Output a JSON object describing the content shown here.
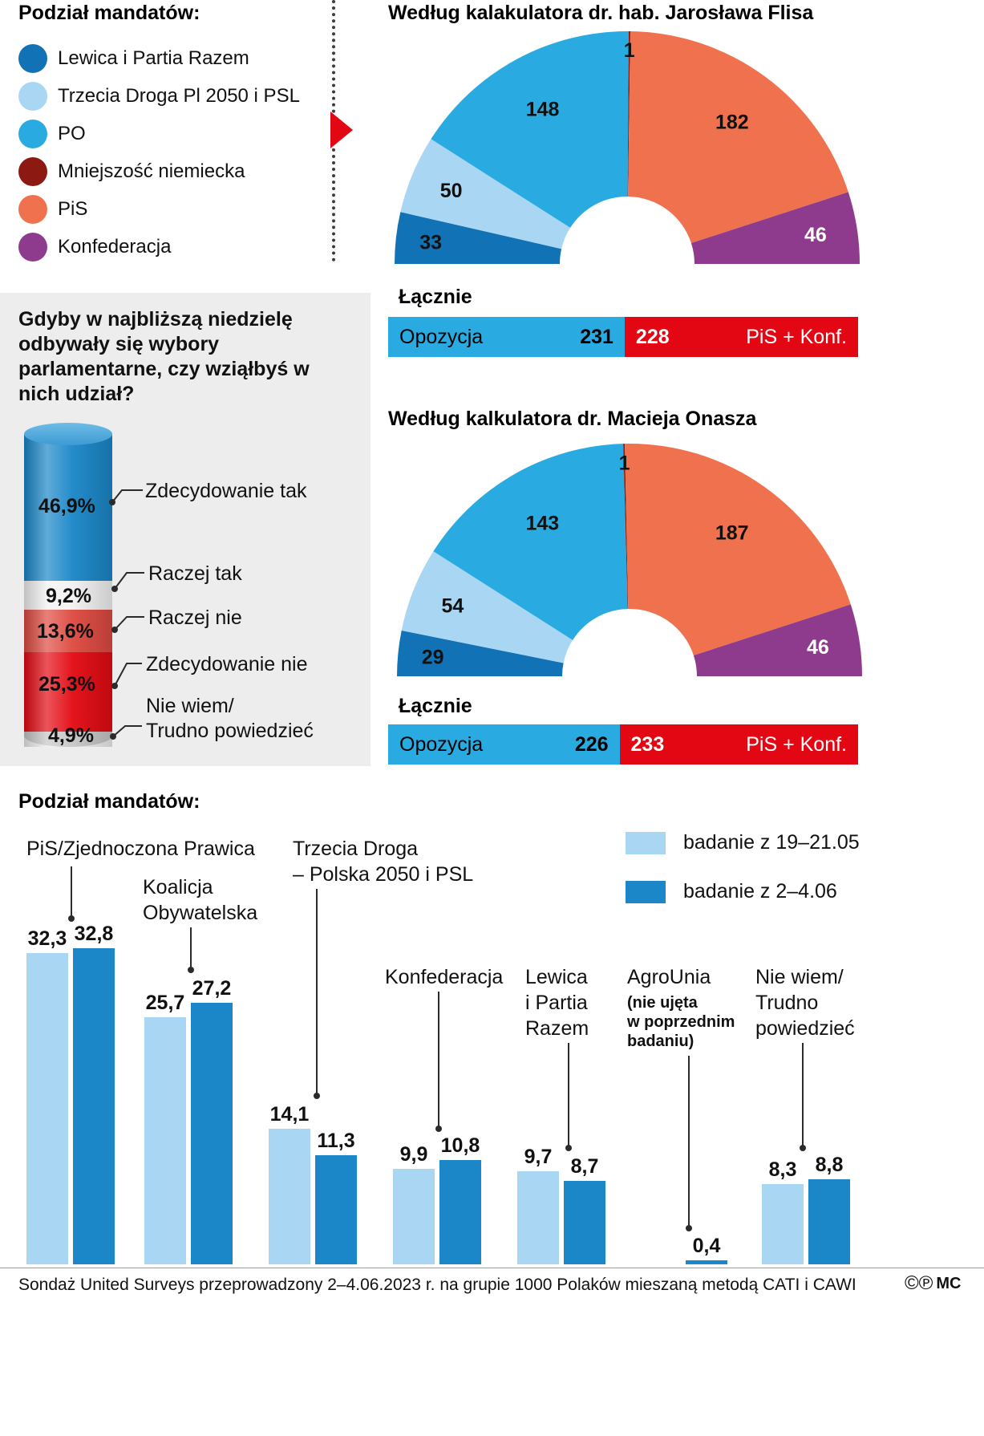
{
  "seat_legend": {
    "title": "Podział mandatów:",
    "items": [
      {
        "label": "Lewica i Partia Razem",
        "color": "#1272b6"
      },
      {
        "label": "Trzecia Droga Pl 2050 i PSL",
        "color": "#a9d6f3"
      },
      {
        "label": "PO",
        "color": "#29abe2"
      },
      {
        "label": "Mniejszość niemiecka",
        "color": "#8c1a12"
      },
      {
        "label": "PiS",
        "color": "#f0714e"
      },
      {
        "label": "Konfederacja",
        "color": "#8e3b8d"
      }
    ]
  },
  "chart_data": [
    {
      "id": "flis",
      "type": "pie",
      "shape": "hemicycle",
      "title": "Według kalakulatora dr. hab. Jarosława Flisa",
      "total_seats": 460,
      "categories": [
        "Lewica i Partia Razem",
        "Trzecia Droga Pl 2050 i PSL",
        "PO",
        "Mniejszość niemiecka",
        "PiS",
        "Konfederacja"
      ],
      "values": [
        33,
        50,
        148,
        1,
        182,
        46
      ],
      "colors": [
        "#1272b6",
        "#a9d6f3",
        "#29abe2",
        "#8c1a12",
        "#f0714e",
        "#8e3b8d"
      ],
      "label_colors": [
        "#111111",
        "#111111",
        "#111111",
        "#111111",
        "#111111",
        "#ffffff"
      ],
      "total_label": "Łącznie",
      "totals": {
        "left_label": "Opozycja",
        "left_value": 231,
        "right_value": 228,
        "right_label": "PiS + Konf.",
        "left_color": "#29abe2",
        "right_color": "#e30613"
      }
    },
    {
      "id": "onasz",
      "type": "pie",
      "shape": "hemicycle",
      "title": "Według kalkulatora dr. Macieja Onasza",
      "total_seats": 460,
      "categories": [
        "Lewica i Partia Razem",
        "Trzecia Droga Pl 2050 i PSL",
        "PO",
        "Mniejszość niemiecka",
        "PiS",
        "Konfederacja"
      ],
      "values": [
        29,
        54,
        143,
        1,
        187,
        46
      ],
      "colors": [
        "#1272b6",
        "#a9d6f3",
        "#29abe2",
        "#8c1a12",
        "#f0714e",
        "#8e3b8d"
      ],
      "label_colors": [
        "#111111",
        "#111111",
        "#111111",
        "#111111",
        "#111111",
        "#ffffff"
      ],
      "total_label": "Łącznie",
      "totals": {
        "left_label": "Opozycja",
        "left_value": 226,
        "right_value": 233,
        "right_label": "PiS + Konf.",
        "left_color": "#29abe2",
        "right_color": "#e30613"
      }
    },
    {
      "id": "turnout",
      "type": "bar",
      "shape": "stacked-cylinder",
      "question": "Gdyby w najbliższą niedzielę odbywały się wybory parlamentarne, czy wziąłbyś w nich udział?",
      "categories": [
        "Zdecydowanie tak",
        "Raczej tak",
        "Raczej nie",
        "Zdecydowanie nie",
        "Nie wiem/Trudno powiedzieć"
      ],
      "category_labels": [
        "Zdecydowanie tak",
        "Raczej tak",
        "Raczej nie",
        "Zdecydowanie nie",
        "Nie wiem/\nTrudno powiedzieć"
      ],
      "values": [
        46.9,
        9.2,
        13.6,
        25.3,
        4.9
      ],
      "value_labels": [
        "46,9%",
        "9,2%",
        "13,6%",
        "25,3%",
        "4,9%"
      ],
      "colors": [
        "#1b87c8",
        "#f2f2f2",
        "#de4a41",
        "#e30b13",
        "#c7c7c7"
      ],
      "unit": "%"
    },
    {
      "id": "support",
      "type": "bar",
      "title": "Podział mandatów:",
      "unit": "%",
      "legend": [
        {
          "label": "badanie z 19–21.05",
          "color": "#a9d6f3"
        },
        {
          "label": "badanie z 2–4.06",
          "color": "#1b87c8"
        }
      ],
      "categories": [
        "PiS/Zjednoczona Prawica",
        "Koalicja Obywatelska",
        "Trzecia Droga – Polska 2050 i PSL",
        "Konfederacja",
        "Lewica i Partia Razem",
        "AgroUnia",
        "Nie wiem/Trudno powiedzieć"
      ],
      "category_labels": [
        "PiS/Zjednoczona Prawica",
        "Koalicja\nObywatelska",
        "Trzecia Droga\n– Polska 2050 i PSL",
        "Konfederacja",
        "Lewica\ni Partia\nRazem",
        "AgroUnia",
        "Nie wiem/\nTrudno\npowiedzieć"
      ],
      "agrounia_note": "(nie ujęta\nw poprzednim\nbadaniu)",
      "series": [
        {
          "name": "badanie z 19–21.05",
          "values": [
            32.3,
            25.7,
            14.1,
            9.9,
            9.7,
            null,
            8.3
          ]
        },
        {
          "name": "badanie z 2–4.06",
          "values": [
            32.8,
            27.2,
            11.3,
            10.8,
            8.7,
            0.4,
            8.8
          ]
        }
      ],
      "value_labels": [
        [
          "32,3",
          "25,7",
          "14,1",
          "9,9",
          "9,7",
          null,
          "8,3"
        ],
        [
          "32,8",
          "27,2",
          "11,3",
          "10,8",
          "8,7",
          "0,4",
          "8,8"
        ]
      ]
    }
  ],
  "footer": {
    "text": "Sondaż United Surveys przeprowadzony 2–4.06.2023 r. na grupie 1000 Polaków mieszaną metodą CATI i CAWI",
    "marks": "©℗",
    "brand": "MC"
  }
}
